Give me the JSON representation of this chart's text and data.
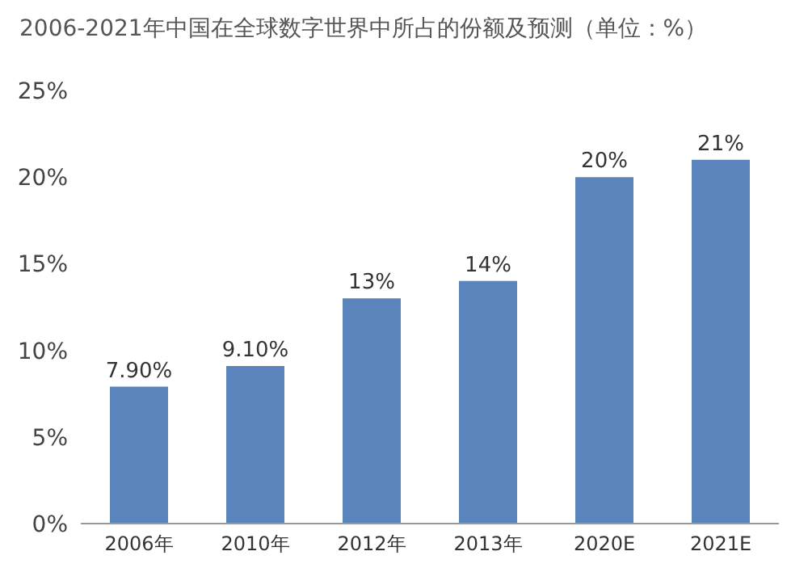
{
  "chart_data": {
    "type": "bar",
    "title": "2006-2021年中国在全球数字世界中所占的份额及预测（单位：%）",
    "categories": [
      "2006年",
      "2010年",
      "2012年",
      "2013年",
      "2020E",
      "2021E"
    ],
    "values": [
      7.9,
      9.1,
      13,
      14,
      20,
      21
    ],
    "value_labels": [
      "7.90%",
      "9.10%",
      "13%",
      "14%",
      "20%",
      "21%"
    ],
    "color": "#5a84bb",
    "ylim": [
      0,
      25
    ],
    "yticks": [
      {
        "value": 0,
        "label": "0%"
      },
      {
        "value": 5,
        "label": "5%"
      },
      {
        "value": 10,
        "label": "10%"
      },
      {
        "value": 15,
        "label": "15%"
      },
      {
        "value": 20,
        "label": "20%"
      },
      {
        "value": 25,
        "label": "25%"
      }
    ],
    "grid": false
  }
}
